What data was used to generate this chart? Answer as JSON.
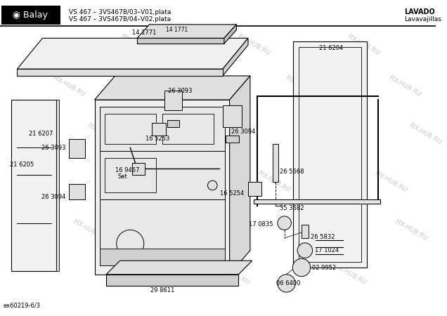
{
  "title_left1": "VS 467 – 3VS467B/03–V01,plata",
  "title_left2": "VS 467 – 3VS467B/04–V02,plata",
  "title_right1": "LAVADO",
  "title_right2": "Lavavajillas",
  "footer": "ex60219-6/3",
  "bg_color": "#ffffff"
}
